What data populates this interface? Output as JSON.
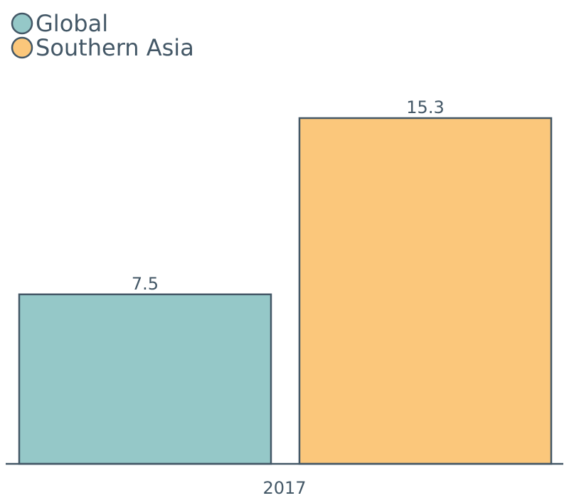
{
  "chart_data": {
    "type": "bar",
    "categories": [
      "2017"
    ],
    "series": [
      {
        "name": "Global",
        "values": [
          7.5
        ],
        "color": "#95c8c8"
      },
      {
        "name": "Southern Asia",
        "values": [
          15.3
        ],
        "color": "#fbc77b"
      }
    ],
    "ylim": [
      0,
      15.3
    ],
    "value_labels": [
      "7.5",
      "15.3"
    ],
    "grid": false,
    "legend": "top-left",
    "outline_color": "#435766"
  }
}
